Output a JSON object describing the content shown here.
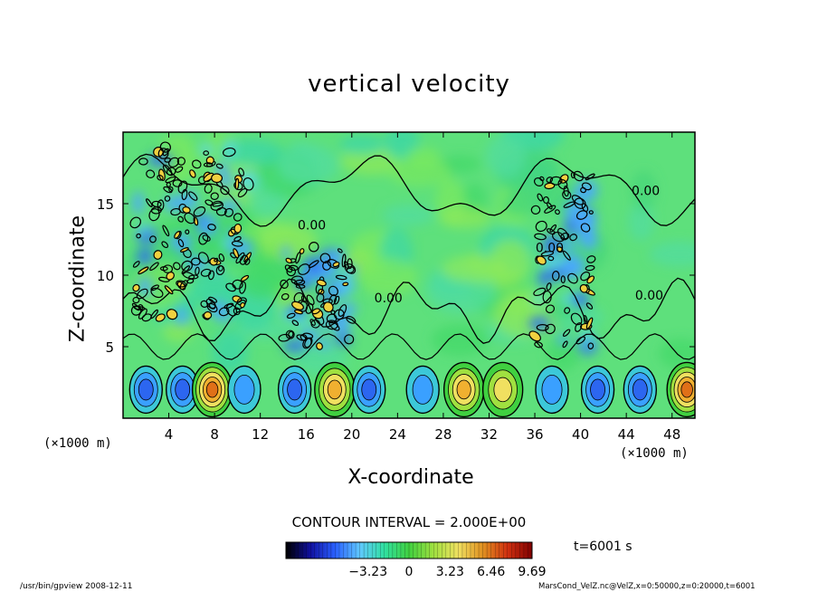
{
  "chart_data": {
    "type": "heatmap",
    "title": "vertical velocity",
    "xlabel": "X-coordinate",
    "ylabel": "Z-coordinate",
    "x_unit_left": "(×1000 m)",
    "x_unit_right": "(×1000 m)",
    "xlim": [
      0,
      50
    ],
    "ylim": [
      0,
      20
    ],
    "x_ticks": [
      4,
      8,
      12,
      16,
      20,
      24,
      28,
      32,
      36,
      40,
      44,
      48
    ],
    "y_ticks": [
      5,
      10,
      15
    ],
    "contour_interval_text": "CONTOUR INTERVAL = 2.000E+00",
    "zero_contour_label": "0.00",
    "colorbar_ticks": [
      {
        "value": -3.23,
        "label": "-3.23"
      },
      {
        "value": 0,
        "label": "0"
      },
      {
        "value": 3.23,
        "label": "3.23"
      },
      {
        "value": 6.46,
        "label": "6.46"
      },
      {
        "value": 9.69,
        "label": "9.69"
      }
    ],
    "colorbar_range": [
      -9.69,
      9.69
    ],
    "colorscale": [
      "#000000",
      "#1010a0",
      "#2a60ff",
      "#60c8ff",
      "#30e0a0",
      "#40d040",
      "#a0e040",
      "#f0e060",
      "#e09020",
      "#d03010",
      "#800000"
    ],
    "time_label": "t=6001 s",
    "near_surface_cells": [
      {
        "x": 2.0,
        "sign": "down",
        "peak": -5
      },
      {
        "x": 5.2,
        "sign": "down",
        "peak": -6
      },
      {
        "x": 7.8,
        "sign": "up",
        "peak": 9
      },
      {
        "x": 10.6,
        "sign": "down",
        "peak": -4
      },
      {
        "x": 15.0,
        "sign": "down",
        "peak": -6
      },
      {
        "x": 18.5,
        "sign": "up",
        "peak": 8
      },
      {
        "x": 21.5,
        "sign": "down",
        "peak": -5
      },
      {
        "x": 26.2,
        "sign": "down",
        "peak": -3
      },
      {
        "x": 29.8,
        "sign": "up",
        "peak": 8
      },
      {
        "x": 33.2,
        "sign": "up",
        "peak": 6
      },
      {
        "x": 37.5,
        "sign": "down",
        "peak": -4
      },
      {
        "x": 41.5,
        "sign": "down",
        "peak": -5
      },
      {
        "x": 45.2,
        "sign": "down",
        "peak": -5
      },
      {
        "x": 49.3,
        "sign": "up",
        "peak": 9
      }
    ],
    "turbulent_regions": [
      {
        "x_range": [
          1,
          11
        ],
        "z_range": [
          7,
          19
        ]
      },
      {
        "x_range": [
          14,
          20
        ],
        "z_range": [
          5,
          12
        ]
      },
      {
        "x_range": [
          36,
          41
        ],
        "z_range": [
          5,
          17
        ]
      }
    ]
  },
  "footer": {
    "left": "/usr/bin/gpview   2008-12-11",
    "right": "MarsCond_VelZ.nc@VelZ,x=0:50000,z=0:20000,t=6001"
  }
}
